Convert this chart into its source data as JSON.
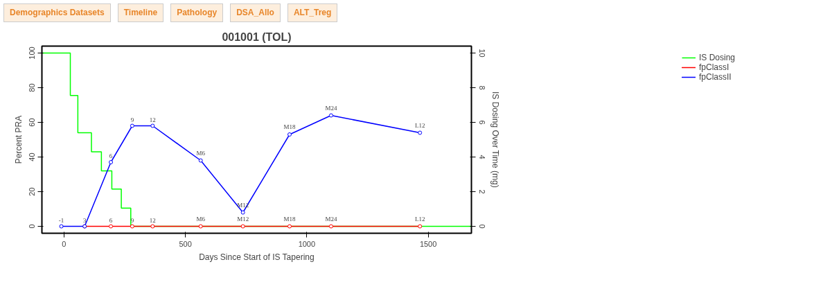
{
  "chart_data": {
    "type": "line",
    "title": "001001 (TOL)",
    "xlabel": "Days Since Start of IS Tapering",
    "ylabel": "Percent PRA",
    "y2label": "IS Dosing Over Time (mg)",
    "annotations": [
      "Demographics Datasets",
      "Timeline",
      "Pathology",
      "DSA_Allo",
      "ALT_Treg",
      {
        "text": "-1",
        "x": -11,
        "y": 0
      },
      {
        "text": "3",
        "x": 85,
        "y": 0
      },
      {
        "text": "6",
        "x": 193,
        "y": 0
      },
      {
        "text": "9",
        "x": 281,
        "y": 0
      },
      {
        "text": "12",
        "x": 365,
        "y": 0
      },
      {
        "text": "M6",
        "x": 563,
        "y": 0
      },
      {
        "text": "M12",
        "x": 737,
        "y": 0
      },
      {
        "text": "M18",
        "x": 929,
        "y": 0
      },
      {
        "text": "M24",
        "x": 1100,
        "y": 0
      },
      {
        "text": "L12",
        "x": 1466,
        "y": 0
      },
      {
        "text": "6",
        "x": 193,
        "y": 37
      },
      {
        "text": "9",
        "x": 281,
        "y": 58
      },
      {
        "text": "12",
        "x": 365,
        "y": 58
      },
      {
        "text": "M6",
        "x": 563,
        "y": 38
      },
      {
        "text": "M12",
        "x": 737,
        "y": 8
      },
      {
        "text": "M18",
        "x": 929,
        "y": 53
      },
      {
        "text": "M24",
        "x": 1100,
        "y": 64
      },
      {
        "text": "L12",
        "x": 1466,
        "y": 54
      }
    ],
    "x": [
      -11,
      85,
      193,
      281,
      365,
      563,
      737,
      929,
      1100,
      1466
    ],
    "series": [
      {
        "name": "IS Dosing",
        "color": "#00ff00",
        "type": "step",
        "axis": "y2",
        "marker": "none",
        "x": [
          -91,
          26,
          57,
          113,
          154,
          197,
          236,
          275,
          1678
        ],
        "values": [
          10,
          7.55,
          5.4,
          4.3,
          3.2,
          2.15,
          1.05,
          0,
          0
        ]
      },
      {
        "name": "fpClassI",
        "color": "#ff0000",
        "values": [
          null,
          0,
          0,
          0,
          0,
          0,
          0,
          0,
          0,
          0
        ]
      },
      {
        "name": "fpClassII",
        "color": "#0000ff",
        "values": [
          0,
          0,
          37,
          58,
          58,
          38,
          8,
          53,
          64,
          54
        ]
      }
    ],
    "xlim": [
      -91,
      1678
    ],
    "xticks": [
      0,
      500,
      1000,
      1500
    ],
    "ylim": [
      -4,
      104
    ],
    "yticks": [
      0,
      20,
      40,
      60,
      80,
      100
    ],
    "y2lim": [
      -0.4,
      10.4
    ],
    "y2ticks": [
      0,
      2,
      4,
      6,
      8,
      10
    ],
    "marker": "circle",
    "line_style": "solid",
    "grid": false,
    "legend": "right"
  }
}
